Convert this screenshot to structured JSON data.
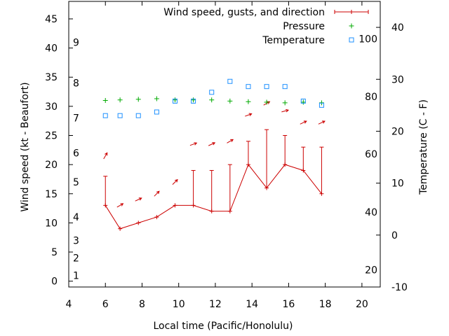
{
  "chart_data": {
    "type": "scatter",
    "xlabel": "Local time (Pacific/Honolulu)",
    "ylabel": "Wind speed (kt - Beaufort)",
    "y2label": "Temperature (C - F)",
    "xlim": [
      4,
      21
    ],
    "ylim": [
      -1,
      48
    ],
    "y2lim": [
      -10,
      45
    ],
    "x_ticks": [
      4,
      6,
      8,
      10,
      12,
      14,
      16,
      18,
      20
    ],
    "y_ticks": [
      0,
      5,
      10,
      15,
      20,
      25,
      30,
      35,
      40,
      45
    ],
    "y2_ticks": [
      -10,
      0,
      10,
      20,
      30,
      40
    ],
    "beaufort_labels": [
      {
        "text": "1",
        "kt": 1
      },
      {
        "text": "2",
        "kt": 4
      },
      {
        "text": "3",
        "kt": 7
      },
      {
        "text": "4",
        "kt": 11
      },
      {
        "text": "5",
        "kt": 17
      },
      {
        "text": "6",
        "kt": 22
      },
      {
        "text": "7",
        "kt": 28
      },
      {
        "text": "8",
        "kt": 34
      },
      {
        "text": "9",
        "kt": 41
      }
    ],
    "fahrenheit_labels": [
      {
        "text": "20",
        "c": -6.7
      },
      {
        "text": "40",
        "c": 4.4
      },
      {
        "text": "60",
        "c": 15.6
      },
      {
        "text": "80",
        "c": 26.7
      },
      {
        "text": "100",
        "c": 37.8
      }
    ],
    "legend": [
      {
        "name": "Wind speed, gusts, and direction",
        "color": "#cc0000"
      },
      {
        "name": "Pressure",
        "color": "#00aa00"
      },
      {
        "name": "Temperature",
        "color": "#1e90ff"
      }
    ],
    "wind": [
      {
        "x": 6.0,
        "speed": 13,
        "gust": 18,
        "arrow_y": 21.5,
        "dir": 210
      },
      {
        "x": 6.8,
        "speed": 9,
        "gust": null,
        "arrow_y": 13,
        "dir": 240
      },
      {
        "x": 7.8,
        "speed": 10,
        "gust": null,
        "arrow_y": 14,
        "dir": 245
      },
      {
        "x": 8.8,
        "speed": 11,
        "gust": null,
        "arrow_y": 15,
        "dir": 225
      },
      {
        "x": 9.8,
        "speed": 13,
        "gust": null,
        "arrow_y": 17,
        "dir": 225
      },
      {
        "x": 10.8,
        "speed": 13,
        "gust": 19,
        "arrow_y": 23.5,
        "dir": 250
      },
      {
        "x": 11.8,
        "speed": 12,
        "gust": 19,
        "arrow_y": 23.5,
        "dir": 245
      },
      {
        "x": 12.8,
        "speed": 12,
        "gust": 20,
        "arrow_y": 24,
        "dir": 240
      },
      {
        "x": 13.8,
        "speed": 20,
        "gust": 24,
        "arrow_y": 28.5,
        "dir": 250
      },
      {
        "x": 14.8,
        "speed": 16,
        "gust": 26,
        "arrow_y": 30.5,
        "dir": 240
      },
      {
        "x": 15.8,
        "speed": 20,
        "gust": 25,
        "arrow_y": 29.2,
        "dir": 255
      },
      {
        "x": 16.8,
        "speed": 19,
        "gust": 23,
        "arrow_y": 27.2,
        "dir": 245
      },
      {
        "x": 17.8,
        "speed": 15,
        "gust": 23,
        "arrow_y": 27.2,
        "dir": 245
      }
    ],
    "pressure": [
      {
        "x": 6.0,
        "y": 31.0
      },
      {
        "x": 6.8,
        "y": 31.1
      },
      {
        "x": 7.8,
        "y": 31.2
      },
      {
        "x": 8.8,
        "y": 31.3
      },
      {
        "x": 9.8,
        "y": 31.1
      },
      {
        "x": 10.8,
        "y": 31.1
      },
      {
        "x": 11.8,
        "y": 31.1
      },
      {
        "x": 12.8,
        "y": 30.9
      },
      {
        "x": 13.8,
        "y": 30.8
      },
      {
        "x": 14.8,
        "y": 30.7
      },
      {
        "x": 15.8,
        "y": 30.6
      },
      {
        "x": 16.8,
        "y": 30.7
      },
      {
        "x": 17.8,
        "y": 30.6
      }
    ],
    "temperature_c": [
      {
        "x": 6.0,
        "c": 23.0
      },
      {
        "x": 6.8,
        "c": 23.0
      },
      {
        "x": 7.8,
        "c": 23.0
      },
      {
        "x": 8.8,
        "c": 23.7
      },
      {
        "x": 9.8,
        "c": 25.8
      },
      {
        "x": 10.8,
        "c": 25.8
      },
      {
        "x": 11.8,
        "c": 27.5
      },
      {
        "x": 12.8,
        "c": 29.6
      },
      {
        "x": 13.8,
        "c": 28.6
      },
      {
        "x": 14.8,
        "c": 28.6
      },
      {
        "x": 15.8,
        "c": 28.6
      },
      {
        "x": 16.8,
        "c": 25.8
      },
      {
        "x": 17.8,
        "c": 25.0
      }
    ]
  }
}
